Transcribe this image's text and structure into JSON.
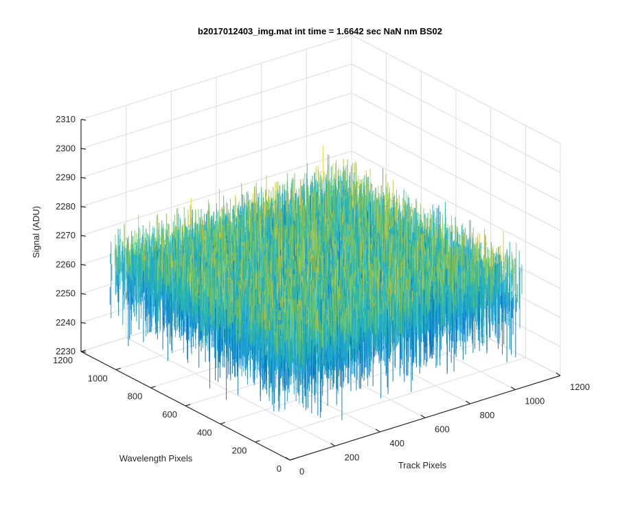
{
  "chart_data": {
    "type": "surface",
    "title": "b2017012403_img.mat int time = 1.6642 sec  NaN nm BS02",
    "xlabel": "Track Pixels",
    "ylabel": "Wavelength Pixels",
    "zlabel": "Signal (ADU)",
    "xlim": [
      0,
      1200
    ],
    "ylim": [
      0,
      1200
    ],
    "zlim": [
      2230,
      2310
    ],
    "xticks": [
      0,
      200,
      400,
      600,
      800,
      1000,
      1200
    ],
    "yticks": [
      0,
      200,
      400,
      600,
      800,
      1000,
      1200
    ],
    "zticks": [
      2230,
      2240,
      2250,
      2260,
      2270,
      2280,
      2290,
      2300,
      2310
    ],
    "x_tick_labels": [
      "0",
      "200",
      "400",
      "600",
      "800",
      "1000",
      "1200"
    ],
    "y_tick_labels": [
      "0",
      "200",
      "400",
      "600",
      "800",
      "1000",
      "1200"
    ],
    "z_tick_labels": [
      "2230",
      "2240",
      "2250",
      "2260",
      "2270",
      "2280",
      "2290",
      "2300",
      "2310"
    ],
    "data_extent": {
      "x": [
        0,
        1024
      ],
      "y": [
        0,
        1024
      ]
    },
    "surface_mean": 2268,
    "surface_range_approx": [
      2235,
      2305
    ],
    "colormap": "parula",
    "colors": [
      "#0072bd",
      "#1a9fd6",
      "#2bb6b0",
      "#7fc75f",
      "#d6c43c",
      "#f2d129"
    ],
    "grid": true
  }
}
